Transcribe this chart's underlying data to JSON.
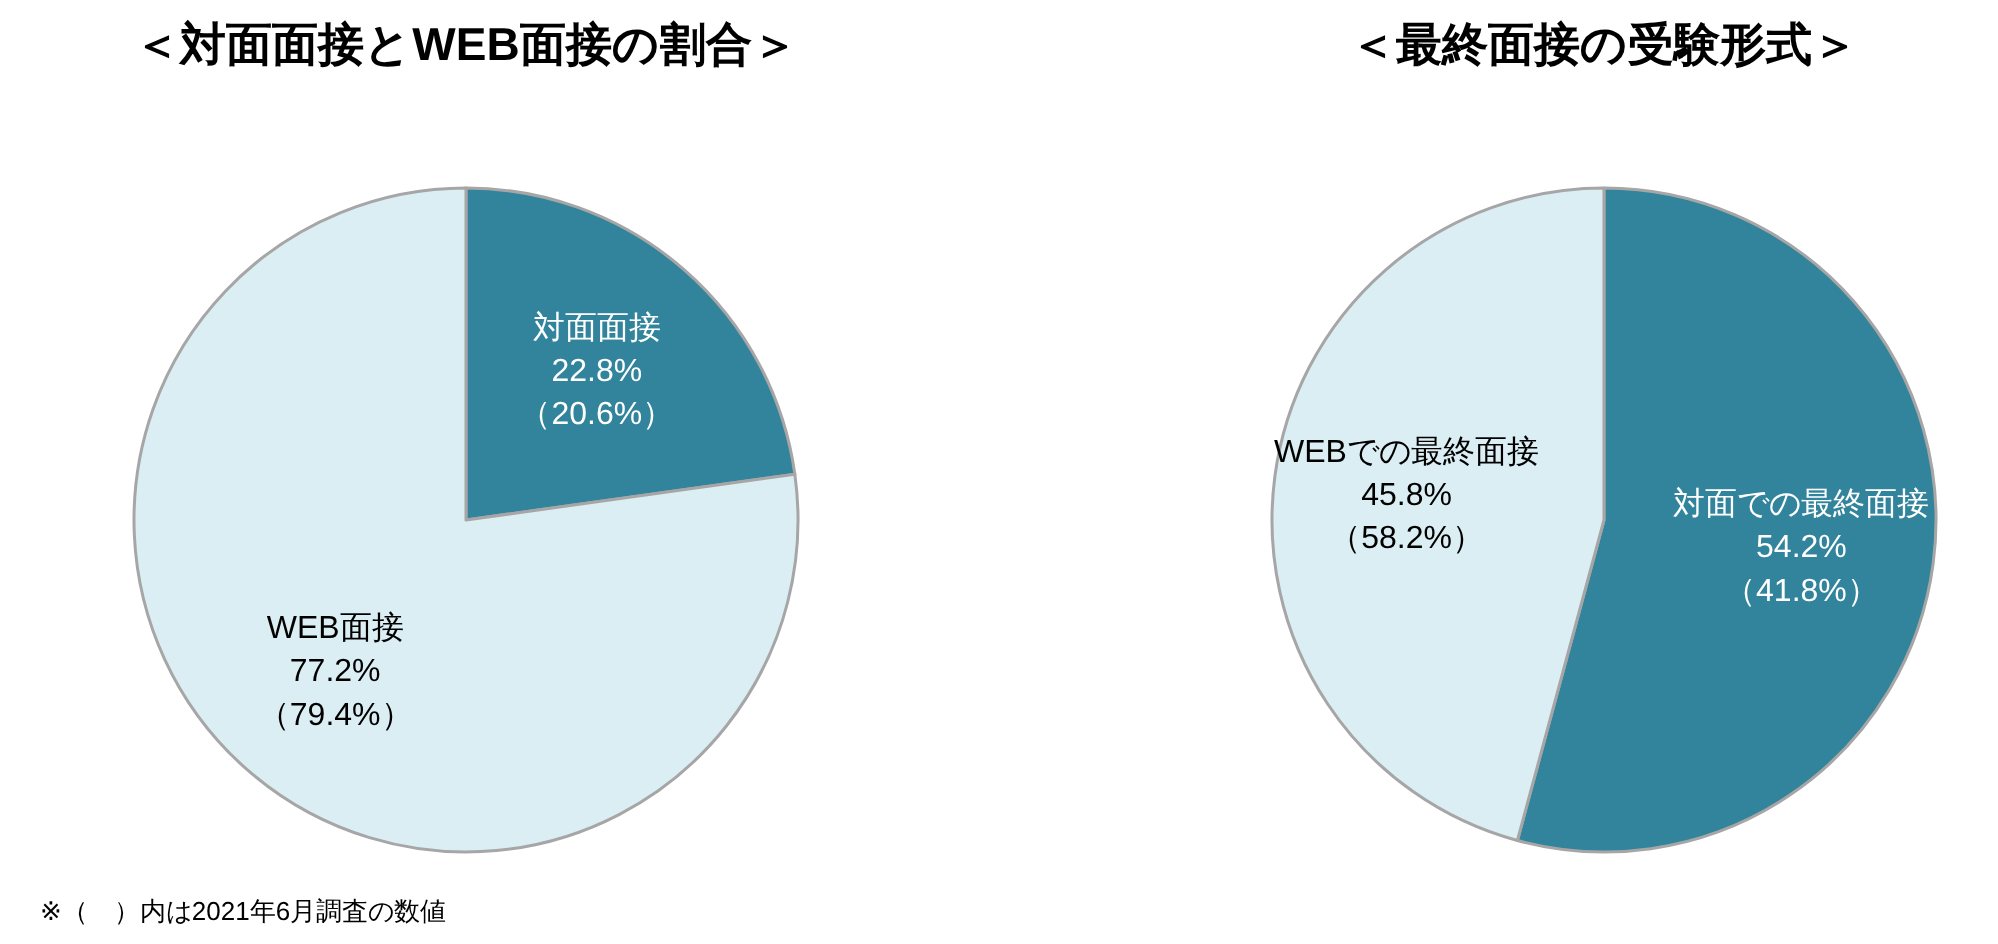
{
  "chart_data": [
    {
      "type": "pie",
      "title": "＜対面面接とWEB面接の割合＞",
      "categories": [
        "対面面接",
        "WEB面接"
      ],
      "values": [
        22.8,
        77.2
      ],
      "colors": [
        "#31849b",
        "#dbeef3"
      ],
      "value_labels": [
        "22.8%\n（20.6%）",
        "77.2%\n（79.4%）"
      ],
      "annotations": [
        "※（　）内は2021年6月調査の数値"
      ]
    },
    {
      "type": "pie",
      "title": "＜最終面接の受験形式＞",
      "categories": [
        "対面での最終面接",
        "WEBでの最終面接"
      ],
      "values": [
        54.2,
        45.8
      ],
      "colors": [
        "#31849b",
        "#dbeef3"
      ],
      "value_labels": [
        "54.2%\n（41.8%）",
        "45.8%\n（58.2%）"
      ]
    }
  ]
}
